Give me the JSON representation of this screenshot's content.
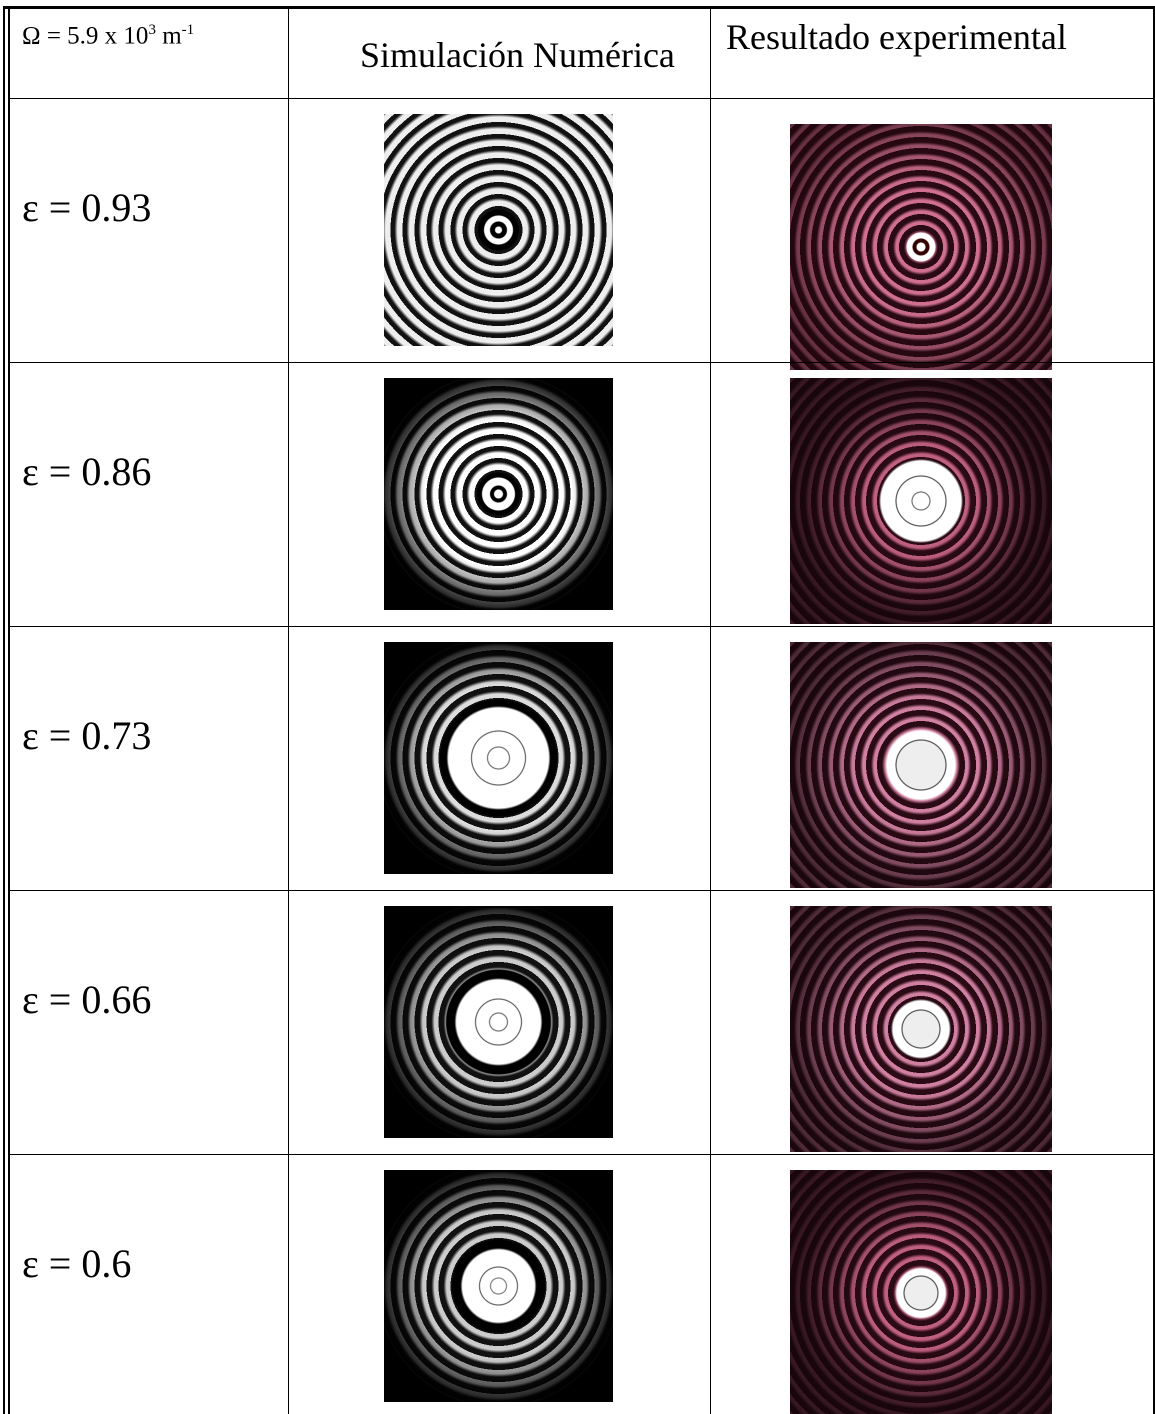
{
  "header": {
    "omega": {
      "base": "Ω = 5.9 x 10",
      "exponent": "3",
      "unit": " m",
      "unit_exponent": "-1"
    },
    "simulation": "Simulación Numérica",
    "experimental": "Resultado experimental"
  },
  "rows": [
    {
      "label": "ε = 0.93"
    },
    {
      "label": "ε = 0.86"
    },
    {
      "label": "ε = 0.73"
    },
    {
      "label": "ε = 0.66"
    },
    {
      "label": "ε = 0.6"
    }
  ]
}
